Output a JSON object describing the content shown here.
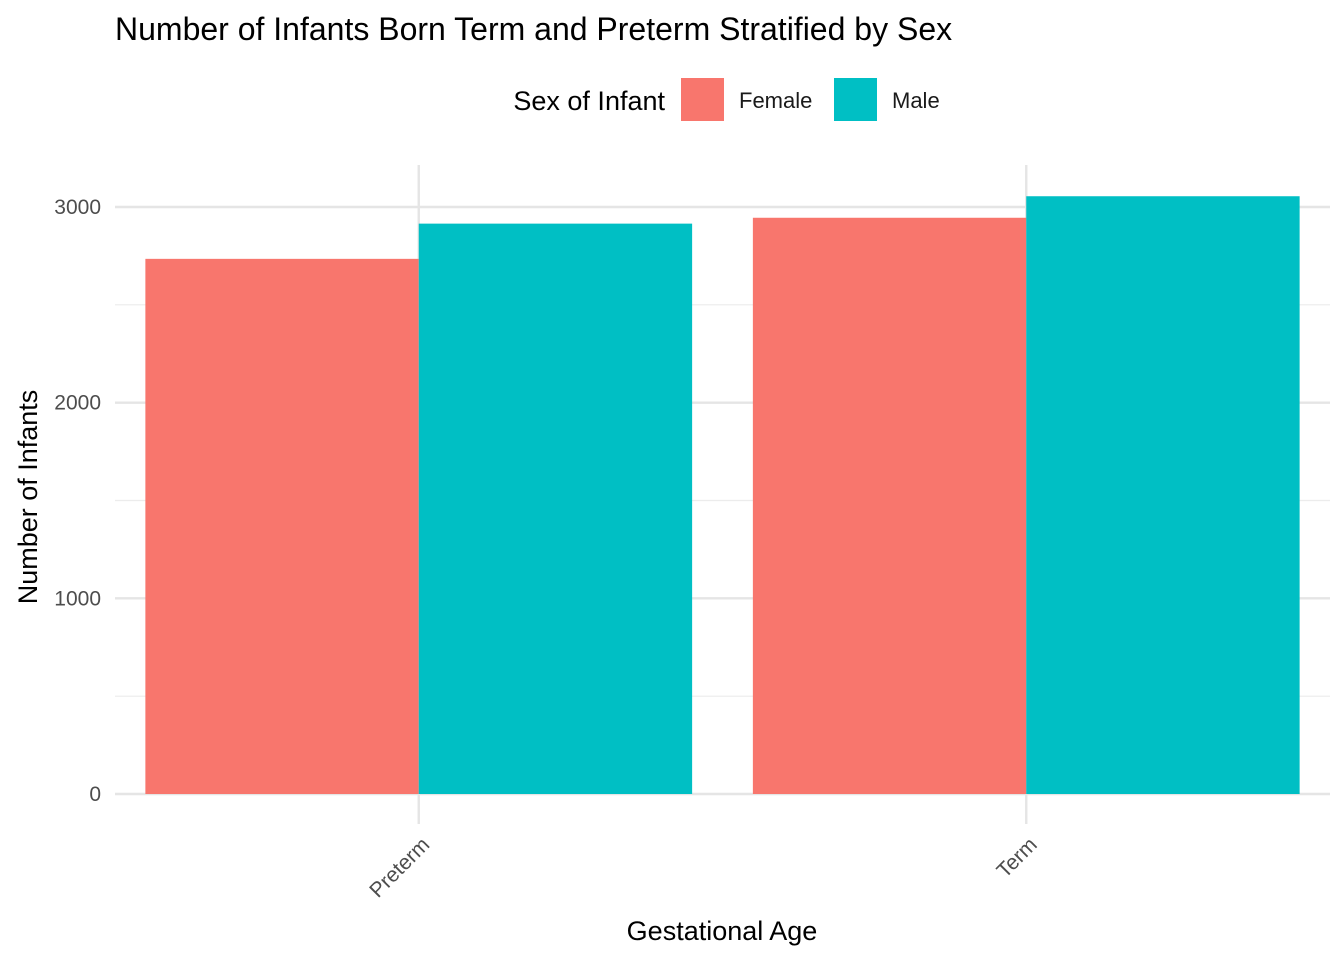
{
  "chart_data": {
    "type": "bar",
    "title": "Number of Infants Born Term and Preterm Stratified by Sex",
    "xlabel": "Gestational Age",
    "ylabel": "Number of Infants",
    "categories": [
      "Preterm",
      "Term"
    ],
    "series": [
      {
        "name": "Female",
        "values": [
          2735,
          2945
        ],
        "color": "#F8766D"
      },
      {
        "name": "Male",
        "values": [
          2915,
          3055
        ],
        "color": "#00BFC4"
      }
    ],
    "ylim": [
      0,
      3100
    ],
    "yticks": [
      0,
      1000,
      2000,
      3000
    ],
    "ytick_labels": [
      "0",
      "1000",
      "2000",
      "3000"
    ],
    "legend": {
      "title": "Sex of Infant",
      "position": "top"
    },
    "grid": true
  }
}
